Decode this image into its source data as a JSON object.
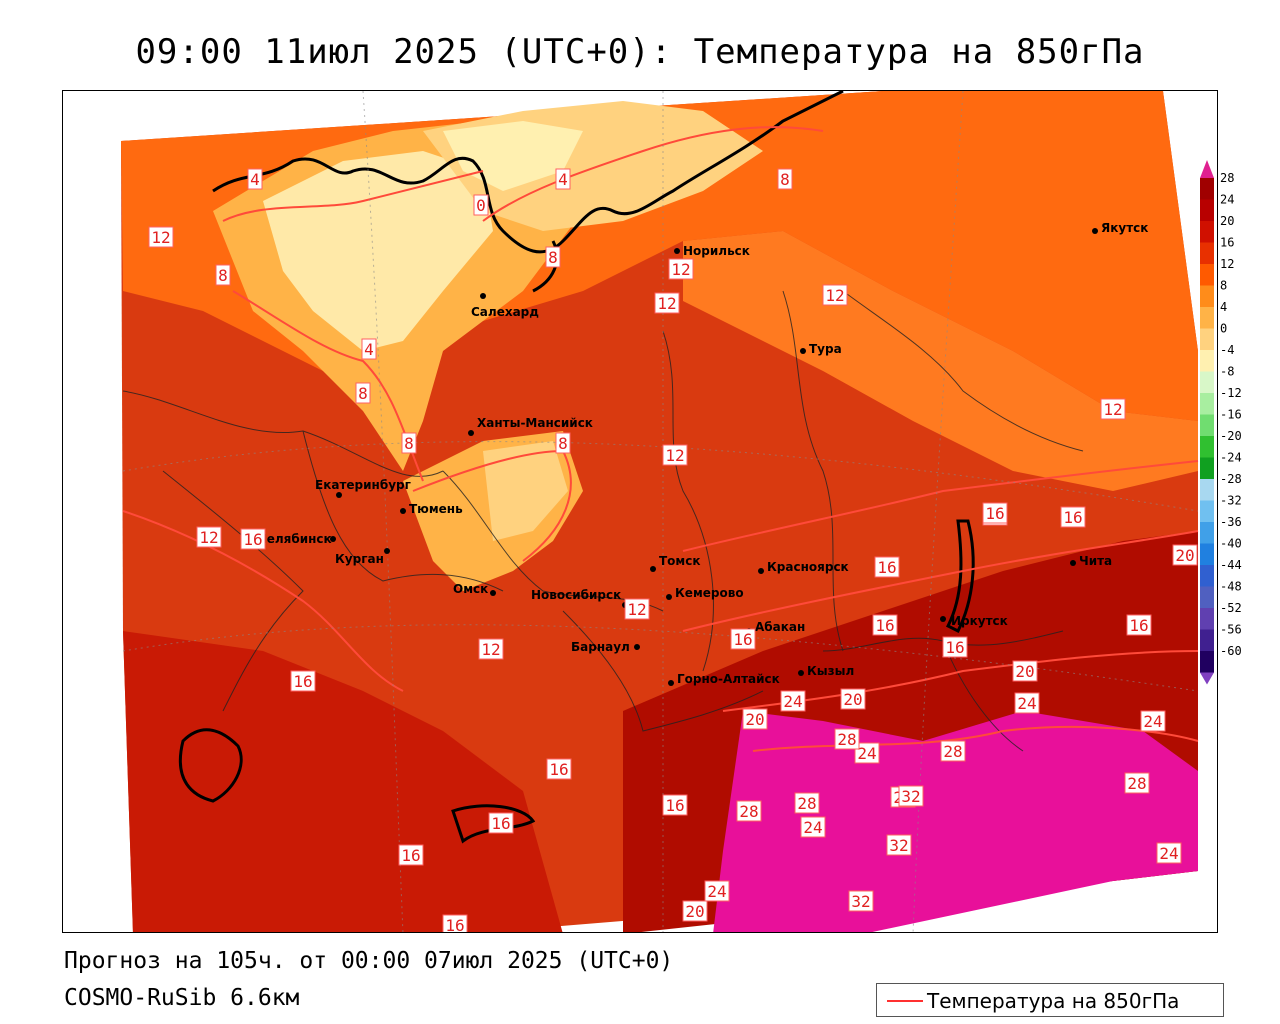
{
  "title": "09:00 11июл 2025 (UTC+0): Температура на 850гПа",
  "footer": {
    "forecast": "Прогноз на 105ч. от 00:00 07июл 2025 (UTC+0)",
    "model": "COSMO-RuSib 6.6км"
  },
  "legend": {
    "label": "Температура на 850гПа",
    "line_color": "#ff3030"
  },
  "colorbar": {
    "ticks": [
      "28",
      "24",
      "20",
      "16",
      "12",
      "8",
      "4",
      "0",
      "-4",
      "-8",
      "-12",
      "-16",
      "-20",
      "-24",
      "-28",
      "-32",
      "-36",
      "-40",
      "-44",
      "-48",
      "-52",
      "-56",
      "-60"
    ],
    "colors": [
      "#a00000",
      "#b80000",
      "#d01000",
      "#e83000",
      "#ff5a00",
      "#ff8c1a",
      "#ffb347",
      "#ffd27f",
      "#fff0b0",
      "#d8f7c8",
      "#a8eea0",
      "#70dd70",
      "#30c030",
      "#10a020",
      "#a8d8f0",
      "#70c0f0",
      "#40a0e8",
      "#2080e0",
      "#3060d0",
      "#5060c0",
      "#6040b0",
      "#402090",
      "#200060"
    ]
  },
  "cities": [
    {
      "name": "Норильск"
    },
    {
      "name": "Якутск"
    },
    {
      "name": "Салехард"
    },
    {
      "name": "Тура"
    },
    {
      "name": "Ханты-Мансийск"
    },
    {
      "name": "Екатеринбург"
    },
    {
      "name": "Тюмень"
    },
    {
      "name": "Челябинск"
    },
    {
      "name": "Курган"
    },
    {
      "name": "Омск"
    },
    {
      "name": "Новосибирск"
    },
    {
      "name": "Томск"
    },
    {
      "name": "Кемерово"
    },
    {
      "name": "Красноярск"
    },
    {
      "name": "Барнаул"
    },
    {
      "name": "Абакан"
    },
    {
      "name": "Горно-Алтайск"
    },
    {
      "name": "Кызыл"
    },
    {
      "name": "Иркутск"
    },
    {
      "name": "Чита"
    }
  ],
  "contour_labels": [
    "4",
    "0",
    "4",
    "8",
    "12",
    "8",
    "4",
    "8",
    "8",
    "8",
    "8",
    "12",
    "12",
    "12",
    "12",
    "12",
    "12",
    "12",
    "12",
    "16",
    "16",
    "16",
    "16",
    "16",
    "16",
    "16",
    "16",
    "16",
    "16",
    "16",
    "16",
    "16",
    "16",
    "16",
    "20",
    "20",
    "20",
    "20",
    "20",
    "24",
    "24",
    "24",
    "24",
    "24",
    "24",
    "24",
    "28",
    "28",
    "28",
    "28",
    "28",
    "28",
    "32",
    "32",
    "32"
  ]
}
